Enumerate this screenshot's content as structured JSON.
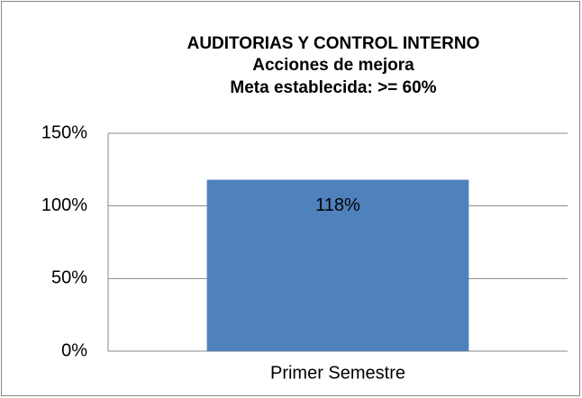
{
  "chart_data": {
    "type": "bar",
    "title": "AUDITORIAS Y CONTROL INTERNO",
    "subtitle": [
      "Acciones de mejora",
      "Meta establecida: >= 60%"
    ],
    "categories": [
      "Primer Semestre"
    ],
    "values": [
      118
    ],
    "value_labels": [
      "118%"
    ],
    "color": "#4f81bd",
    "ylim": [
      0,
      150
    ],
    "yticks": [
      {
        "value": 0,
        "label": "0%"
      },
      {
        "value": 50,
        "label": "50%"
      },
      {
        "value": 100,
        "label": "100%"
      },
      {
        "value": 150,
        "label": "150%"
      }
    ],
    "grid": true
  }
}
